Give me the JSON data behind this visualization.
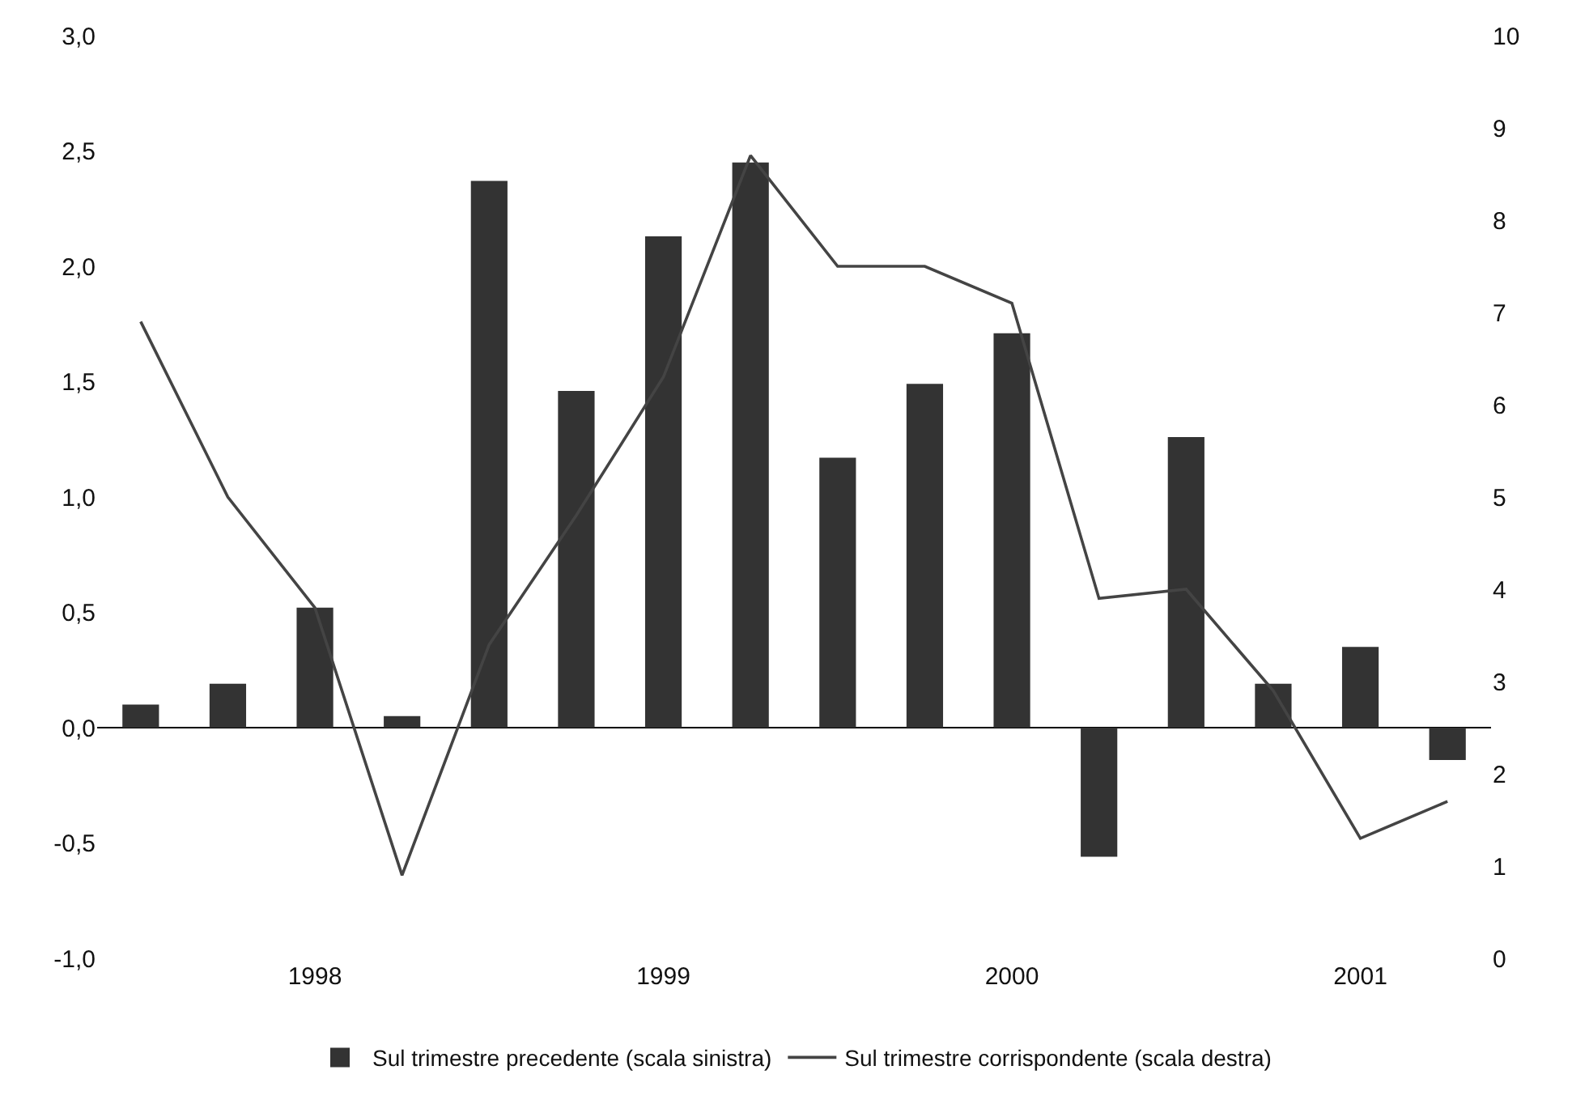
{
  "chart_data": {
    "type": "bar",
    "categories": [
      null,
      null,
      "1998",
      null,
      null,
      null,
      "1999",
      null,
      null,
      null,
      "2000",
      null,
      null,
      null,
      "2001",
      null
    ],
    "series": [
      {
        "name": "Sul trimestre precedente (scala sinistra)",
        "color": "#333333",
        "values": [
          0.1,
          0.19,
          0.52,
          0.05,
          2.37,
          1.46,
          2.13,
          2.45,
          1.17,
          1.49,
          1.71,
          -0.56,
          1.26,
          0.19,
          0.35,
          -0.14
        ]
      },
      {
        "name": "Sul trimestre corrispondente (scala destra)",
        "type": "line",
        "axis": "y2",
        "color": "#444444",
        "values": [
          6.9,
          5.0,
          3.8,
          0.9,
          3.4,
          4.8,
          6.3,
          8.7,
          7.5,
          7.5,
          7.1,
          3.9,
          4.0,
          2.9,
          1.3,
          1.7
        ]
      }
    ],
    "ylim": [
      -1,
      3
    ],
    "yticks": [
      {
        "value": -1,
        "label": "-1,0"
      },
      {
        "value": -0.5,
        "label": "-0,5"
      },
      {
        "value": 0,
        "label": "0,0"
      },
      {
        "value": 0.5,
        "label": "0,5"
      },
      {
        "value": 1,
        "label": "1,0"
      },
      {
        "value": 1.5,
        "label": "1,5"
      },
      {
        "value": 2,
        "label": "2,0"
      },
      {
        "value": 2.5,
        "label": "2,5"
      },
      {
        "value": 3,
        "label": "3,0"
      }
    ],
    "y2lim": [
      0,
      10
    ],
    "y2ticks": [
      0,
      1,
      2,
      3,
      4,
      5,
      6,
      7,
      8,
      9,
      10
    ],
    "legend": "bottom"
  }
}
